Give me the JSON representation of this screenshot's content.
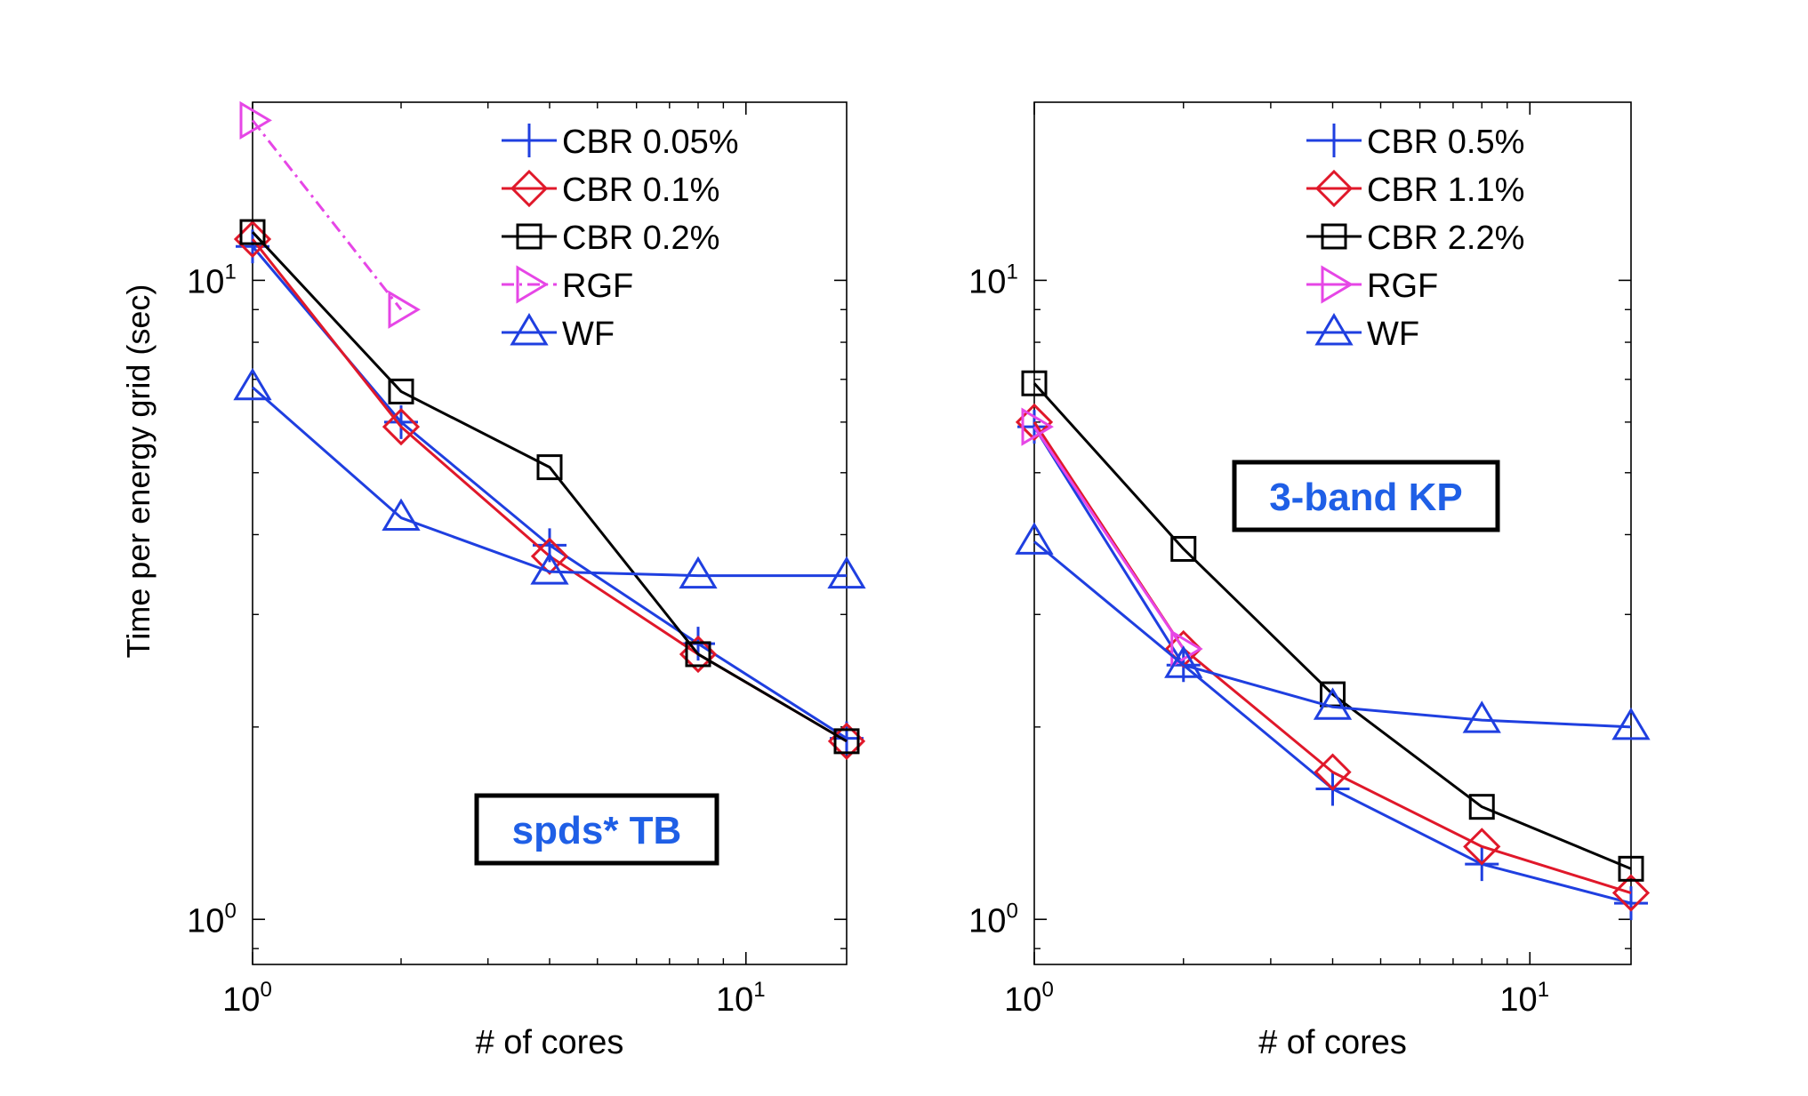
{
  "figure": {
    "ylabel": "Time per energy grid (sec)",
    "colors": {
      "cbr_low": "#1f3fe0",
      "cbr_mid": "#e0182a",
      "cbr_high": "#000000",
      "rgf": "#e646e6",
      "wf": "#1f3fe0",
      "annotation_text": "#1f5fe6"
    }
  },
  "chart_data": [
    {
      "type": "line",
      "xscale": "log",
      "yscale": "log",
      "xlabel": "# of cores",
      "ylabel": "Time per energy grid (sec)",
      "xlim": [
        1,
        16
      ],
      "ylim": [
        0.85,
        19
      ],
      "x_ticks": [
        {
          "value": 1,
          "base": "10",
          "exp": "0"
        },
        {
          "value": 10,
          "base": "10",
          "exp": "1"
        }
      ],
      "y_ticks": [
        {
          "value": 1,
          "base": "10",
          "exp": "0"
        },
        {
          "value": 10,
          "base": "10",
          "exp": "1"
        }
      ],
      "annotation": "spds* TB",
      "legend_position": "top-right",
      "series": [
        {
          "name": "CBR 0.05%",
          "marker": "plus",
          "color": "#1f3fe0",
          "dash": "solid",
          "x": [
            1,
            2,
            4,
            8,
            16
          ],
          "y": [
            11.3,
            6.0,
            3.85,
            2.7,
            1.92
          ]
        },
        {
          "name": "CBR 0.1%",
          "marker": "diamond",
          "color": "#e0182a",
          "dash": "solid",
          "x": [
            1,
            2,
            4,
            8,
            16
          ],
          "y": [
            11.6,
            5.9,
            3.7,
            2.6,
            1.9
          ]
        },
        {
          "name": "CBR 0.2%",
          "marker": "square",
          "color": "#000000",
          "dash": "solid",
          "x": [
            1,
            2,
            4,
            8,
            16
          ],
          "y": [
            11.9,
            6.7,
            5.1,
            2.6,
            1.9
          ]
        },
        {
          "name": "RGF",
          "marker": "triangle-right",
          "color": "#e646e6",
          "dash": "dashdot",
          "x": [
            1,
            2
          ],
          "y": [
            17.8,
            9.0
          ]
        },
        {
          "name": "WF",
          "marker": "triangle-up",
          "color": "#1f3fe0",
          "dash": "solid",
          "x": [
            1,
            2,
            4,
            8,
            16
          ],
          "y": [
            6.8,
            4.25,
            3.5,
            3.45,
            3.45
          ]
        }
      ]
    },
    {
      "type": "line",
      "xscale": "log",
      "yscale": "log",
      "xlabel": "# of cores",
      "ylabel": "",
      "xlim": [
        1,
        16
      ],
      "ylim": [
        0.85,
        19
      ],
      "x_ticks": [
        {
          "value": 1,
          "base": "10",
          "exp": "0"
        },
        {
          "value": 10,
          "base": "10",
          "exp": "1"
        }
      ],
      "y_ticks": [
        {
          "value": 1,
          "base": "10",
          "exp": "0"
        },
        {
          "value": 10,
          "base": "10",
          "exp": "1"
        }
      ],
      "annotation": "3-band KP",
      "legend_position": "top-right",
      "series": [
        {
          "name": "CBR 0.5%",
          "marker": "plus",
          "color": "#1f3fe0",
          "dash": "solid",
          "x": [
            1,
            2,
            4,
            8,
            16
          ],
          "y": [
            5.9,
            2.5,
            1.6,
            1.22,
            1.06
          ]
        },
        {
          "name": "CBR 1.1%",
          "marker": "diamond",
          "color": "#e0182a",
          "dash": "solid",
          "x": [
            1,
            2,
            4,
            8,
            16
          ],
          "y": [
            6.0,
            2.65,
            1.7,
            1.3,
            1.1
          ]
        },
        {
          "name": "CBR 2.2%",
          "marker": "square",
          "color": "#000000",
          "dash": "solid",
          "x": [
            1,
            2,
            4,
            8,
            16
          ],
          "y": [
            6.9,
            3.8,
            2.25,
            1.5,
            1.2
          ]
        },
        {
          "name": "RGF",
          "marker": "triangle-right",
          "color": "#e646e6",
          "dash": "solid",
          "x": [
            1,
            2
          ],
          "y": [
            5.9,
            2.65
          ]
        },
        {
          "name": "WF",
          "marker": "triangle-up",
          "color": "#1f3fe0",
          "dash": "solid",
          "x": [
            1,
            2,
            4,
            8,
            16
          ],
          "y": [
            3.9,
            2.5,
            2.15,
            2.05,
            2.0
          ]
        }
      ]
    }
  ]
}
